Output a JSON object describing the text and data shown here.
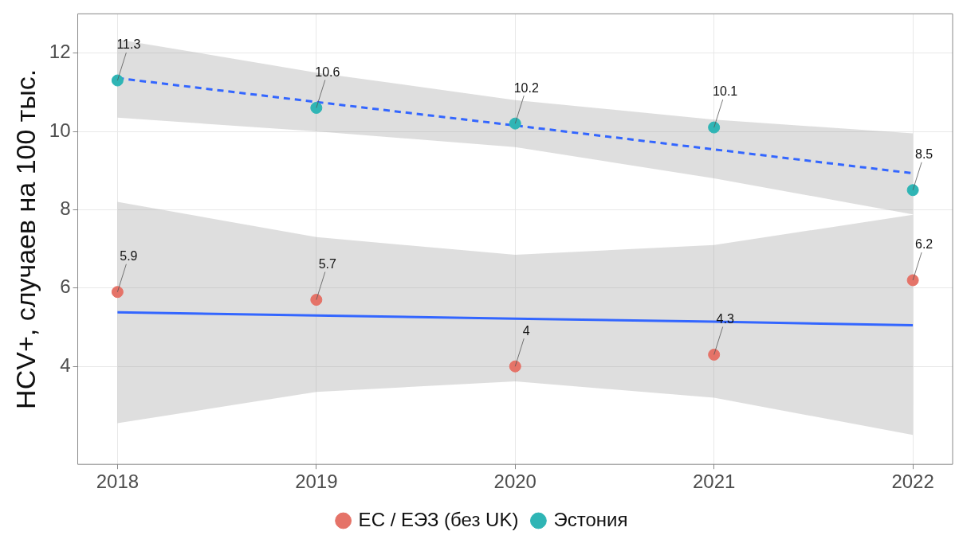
{
  "chart_data": {
    "type": "scatter",
    "ylabel": "HCV+, случаев на 100 тыс.",
    "xlim": [
      2017.8,
      2022.2
    ],
    "xticks": [
      2018,
      2019,
      2020,
      2021,
      2022
    ],
    "ylim": [
      1.5,
      13
    ],
    "yticks": [
      4,
      6,
      8,
      10,
      12
    ],
    "grid": true,
    "legend": "bottom",
    "series": [
      {
        "type": "line",
        "marker": "none",
        "color": "#3366ff",
        "line_style": "solid",
        "x": [
          2018,
          2019,
          2020,
          2021,
          2022
        ],
        "values": [
          5.38,
          5.3,
          5.22,
          5.14,
          5.05
        ],
        "lower": [
          2.55,
          3.35,
          3.62,
          3.2,
          2.25
        ],
        "upper": [
          8.2,
          7.3,
          6.85,
          7.1,
          7.87
        ]
      },
      {
        "type": "line",
        "marker": "none",
        "color": "#3366ff",
        "line_style": "dashed",
        "x": [
          2018,
          2019,
          2020,
          2021,
          2022
        ],
        "values": [
          11.36,
          10.75,
          10.15,
          9.54,
          8.93
        ],
        "lower": [
          10.35,
          10.0,
          9.6,
          8.8,
          7.88
        ],
        "upper": [
          12.35,
          11.5,
          10.8,
          10.3,
          9.95
        ]
      },
      {
        "name": "ЕС / ЕЭЗ (без UK)",
        "marker": "circle",
        "color": "#e57368",
        "x": [
          2018,
          2019,
          2020,
          2021,
          2022
        ],
        "values": [
          5.9,
          5.7,
          4,
          4.3,
          6.2
        ],
        "value_labels": [
          "5.9",
          "5.7",
          "4",
          "4.3",
          "6.2"
        ]
      },
      {
        "name": "Эстония",
        "marker": "circle",
        "color": "#2fb5b5",
        "x": [
          2018,
          2019,
          2020,
          2021,
          2022
        ],
        "values": [
          11.3,
          10.6,
          10.2,
          10.1,
          8.5
        ],
        "value_labels": [
          "11.3",
          "10.6",
          "10.2",
          "10.1",
          "8.5"
        ]
      }
    ]
  }
}
